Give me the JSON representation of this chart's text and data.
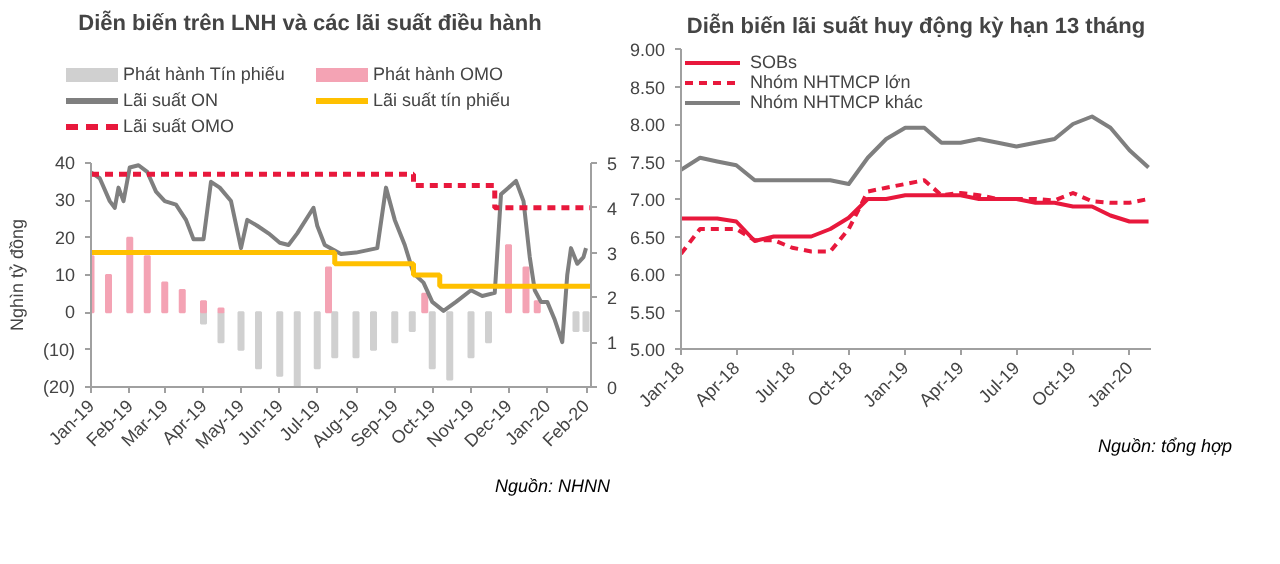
{
  "chart_data": [
    {
      "type": "bar",
      "title": "Diễn biến trên LNH và các lãi suất điều hành",
      "ylabel": "Nghìn tỷ đồng",
      "xlim": [
        "2019-01-01",
        "2020-02-05"
      ],
      "xticks": [
        {
          "value": "2019-01-01",
          "label": "Jan-19"
        },
        {
          "value": "2019-02-01",
          "label": "Feb-19"
        },
        {
          "value": "2019-03-01",
          "label": "Mar-19"
        },
        {
          "value": "2019-04-01",
          "label": "Apr-19"
        },
        {
          "value": "2019-05-01",
          "label": "May-19"
        },
        {
          "value": "2019-06-01",
          "label": "Jun-19"
        },
        {
          "value": "2019-07-01",
          "label": "Jul-19"
        },
        {
          "value": "2019-08-01",
          "label": "Aug-19"
        },
        {
          "value": "2019-09-01",
          "label": "Sep-19"
        },
        {
          "value": "2019-10-01",
          "label": "Oct-19"
        },
        {
          "value": "2019-11-01",
          "label": "Nov-19"
        },
        {
          "value": "2019-12-01",
          "label": "Dec-19"
        },
        {
          "value": "2020-01-01",
          "label": "Jan-20"
        },
        {
          "value": "2020-02-01",
          "label": "Feb-20"
        }
      ],
      "ylim": [
        -20,
        40
      ],
      "yticks": [
        {
          "value": -20,
          "label": "(20)"
        },
        {
          "value": -10,
          "label": "(10)"
        },
        0,
        10,
        20,
        30,
        40
      ],
      "y2lim": [
        0,
        5
      ],
      "y2ticks": [
        0,
        1,
        2,
        3,
        4,
        5
      ],
      "grid": false,
      "legend": "top",
      "annotations": [
        "Nguồn: NHNN"
      ],
      "series": [
        {
          "name": "Phát hành Tín phiếu",
          "type": "bar",
          "color": "#d0d0d0",
          "x": [
            "2019-04-01",
            "2019-04-15",
            "2019-05-01",
            "2019-05-15",
            "2019-06-01",
            "2019-06-15",
            "2019-07-01",
            "2019-07-15",
            "2019-08-01",
            "2019-08-15",
            "2019-09-01",
            "2019-09-15",
            "2019-10-01",
            "2019-10-15",
            "2019-11-01",
            "2019-11-15",
            "2020-01-24",
            "2020-02-01"
          ],
          "values": [
            -3,
            -8,
            -10,
            -15,
            -17,
            -20,
            -15,
            -12,
            -12,
            -10,
            -8,
            -5,
            -15,
            -18,
            -12,
            -8,
            -5,
            -5
          ]
        },
        {
          "name": "Phát hành OMO",
          "type": "bar",
          "color": "#f4a3b4",
          "x": [
            "2019-01-01",
            "2019-01-15",
            "2019-02-01",
            "2019-02-15",
            "2019-03-01",
            "2019-03-15",
            "2019-04-01",
            "2019-04-15",
            "2019-07-10",
            "2019-09-25",
            "2019-12-01",
            "2019-12-15",
            "2019-12-24"
          ],
          "values": [
            15,
            10,
            20,
            15,
            8,
            6,
            3,
            1,
            12,
            5,
            18,
            12,
            3
          ]
        },
        {
          "name": "Lãi suất ON",
          "type": "line",
          "axis": "y2",
          "color": "#7f7f7f",
          "line_style": "solid",
          "x": [
            "2019-01-01",
            "2019-01-08",
            "2019-01-16",
            "2019-01-20",
            "2019-01-23",
            "2019-01-27",
            "2019-02-01",
            "2019-02-08",
            "2019-02-15",
            "2019-02-22",
            "2019-03-01",
            "2019-03-10",
            "2019-03-18",
            "2019-03-24",
            "2019-04-01",
            "2019-04-07",
            "2019-04-14",
            "2019-04-23",
            "2019-05-01",
            "2019-05-06",
            "2019-05-14",
            "2019-05-23",
            "2019-06-01",
            "2019-06-08",
            "2019-06-15",
            "2019-06-28",
            "2019-07-01",
            "2019-07-07",
            "2019-07-20",
            "2019-08-01",
            "2019-08-18",
            "2019-08-25",
            "2019-09-01",
            "2019-09-09",
            "2019-09-16",
            "2019-09-24",
            "2019-10-01",
            "2019-10-10",
            "2019-10-20",
            "2019-11-01",
            "2019-11-10",
            "2019-11-20",
            "2019-11-25",
            "2019-12-01",
            "2019-12-07",
            "2019-12-13",
            "2019-12-18",
            "2019-12-22",
            "2019-12-27",
            "2020-01-01",
            "2020-01-07",
            "2020-01-13",
            "2020-01-17",
            "2020-01-20",
            "2020-01-25",
            "2020-01-30",
            "2020-02-01"
          ],
          "values": [
            4.79,
            4.66,
            4.15,
            4.0,
            4.45,
            4.15,
            4.9,
            4.95,
            4.8,
            4.36,
            4.15,
            4.07,
            3.73,
            3.3,
            3.3,
            4.58,
            4.45,
            4.15,
            3.1,
            3.73,
            3.6,
            3.43,
            3.22,
            3.17,
            3.43,
            4.0,
            3.6,
            3.17,
            2.97,
            3.0,
            3.1,
            4.45,
            3.73,
            3.17,
            2.54,
            2.33,
            1.9,
            1.7,
            1.9,
            2.16,
            2.03,
            2.1,
            4.3,
            4.45,
            4.6,
            4.15,
            2.9,
            2.16,
            1.9,
            1.9,
            1.5,
            1.0,
            2.5,
            3.1,
            2.75,
            2.9,
            3.1
          ]
        },
        {
          "name": "Lãi suất tín phiếu",
          "type": "step",
          "axis": "y2",
          "color": "#ffc000",
          "line_style": "solid",
          "x": [
            "2019-01-01",
            "2019-07-15",
            "2019-09-16",
            "2019-10-07",
            "2020-02-05"
          ],
          "values": [
            3.0,
            2.75,
            2.5,
            2.25,
            2.25
          ]
        },
        {
          "name": "Lãi suất OMO",
          "type": "step",
          "axis": "y2",
          "color": "#e8183c",
          "line_style": "dashed",
          "x": [
            "2019-01-01",
            "2019-09-16",
            "2019-11-20",
            "2020-02-05"
          ],
          "values": [
            4.75,
            4.5,
            4.0,
            4.0
          ]
        }
      ]
    },
    {
      "type": "line",
      "title": "Diễn biến lãi suất huy động kỳ hạn 13 tháng",
      "xlim": [
        "2018-01-01",
        "2020-02-05"
      ],
      "xticks": [
        {
          "value": "2018-01-01",
          "label": "Jan-18"
        },
        {
          "value": "2018-04-01",
          "label": "Apr-18"
        },
        {
          "value": "2018-07-01",
          "label": "Jul-18"
        },
        {
          "value": "2018-10-01",
          "label": "Oct-18"
        },
        {
          "value": "2019-01-01",
          "label": "Jan-19"
        },
        {
          "value": "2019-04-01",
          "label": "Apr-19"
        },
        {
          "value": "2019-07-01",
          "label": "Jul-19"
        },
        {
          "value": "2019-10-01",
          "label": "Oct-19"
        },
        {
          "value": "2020-01-01",
          "label": "Jan-20"
        }
      ],
      "ylim": [
        5,
        9
      ],
      "yticks": [
        {
          "value": 5,
          "label": "5.00"
        },
        {
          "value": 5.5,
          "label": "5.50"
        },
        {
          "value": 6,
          "label": "6.00"
        },
        {
          "value": 6.5,
          "label": "6.50"
        },
        {
          "value": 7,
          "label": "7.00"
        },
        {
          "value": 7.5,
          "label": "7.50"
        },
        {
          "value": 8,
          "label": "8.00"
        },
        {
          "value": 8.5,
          "label": "8.50"
        },
        {
          "value": 9,
          "label": "9.00"
        }
      ],
      "grid": false,
      "legend": "top left",
      "annotations": [
        "Nguồn: tổng hợp"
      ],
      "x": [
        "2018-01",
        "2018-02",
        "2018-03",
        "2018-04",
        "2018-05",
        "2018-06",
        "2018-07",
        "2018-08",
        "2018-09",
        "2018-10",
        "2018-11",
        "2018-12",
        "2019-01",
        "2019-02",
        "2019-03",
        "2019-04",
        "2019-05",
        "2019-06",
        "2019-07",
        "2019-08",
        "2019-09",
        "2019-10",
        "2019-11",
        "2019-12",
        "2020-01",
        "2020-02"
      ],
      "series": [
        {
          "name": "SOBs",
          "color": "#e8183c",
          "line_style": "solid",
          "values": [
            6.74,
            6.74,
            6.74,
            6.7,
            6.44,
            6.5,
            6.5,
            6.5,
            6.6,
            6.75,
            7.0,
            7.0,
            7.05,
            7.05,
            7.05,
            7.05,
            7.0,
            7.0,
            7.0,
            6.95,
            6.95,
            6.9,
            6.9,
            6.78,
            6.7,
            6.7
          ]
        },
        {
          "name": "Nhóm NHTMCP lớn",
          "color": "#e8183c",
          "line_style": "dashed",
          "values": [
            6.27,
            6.6,
            6.6,
            6.6,
            6.45,
            6.45,
            6.35,
            6.3,
            6.3,
            6.6,
            7.1,
            7.15,
            7.2,
            7.25,
            7.05,
            7.08,
            7.05,
            7.0,
            7.0,
            7.0,
            6.98,
            7.08,
            6.97,
            6.95,
            6.95,
            7.0
          ]
        },
        {
          "name": "Nhóm NHTMCP khác",
          "color": "#7f7f7f",
          "line_style": "solid",
          "values": [
            7.39,
            7.55,
            7.5,
            7.45,
            7.25,
            7.25,
            7.25,
            7.25,
            7.25,
            7.2,
            7.55,
            7.8,
            7.95,
            7.95,
            7.75,
            7.75,
            7.8,
            7.75,
            7.7,
            7.75,
            7.8,
            8.0,
            8.1,
            7.95,
            7.65,
            7.42
          ]
        }
      ]
    }
  ]
}
